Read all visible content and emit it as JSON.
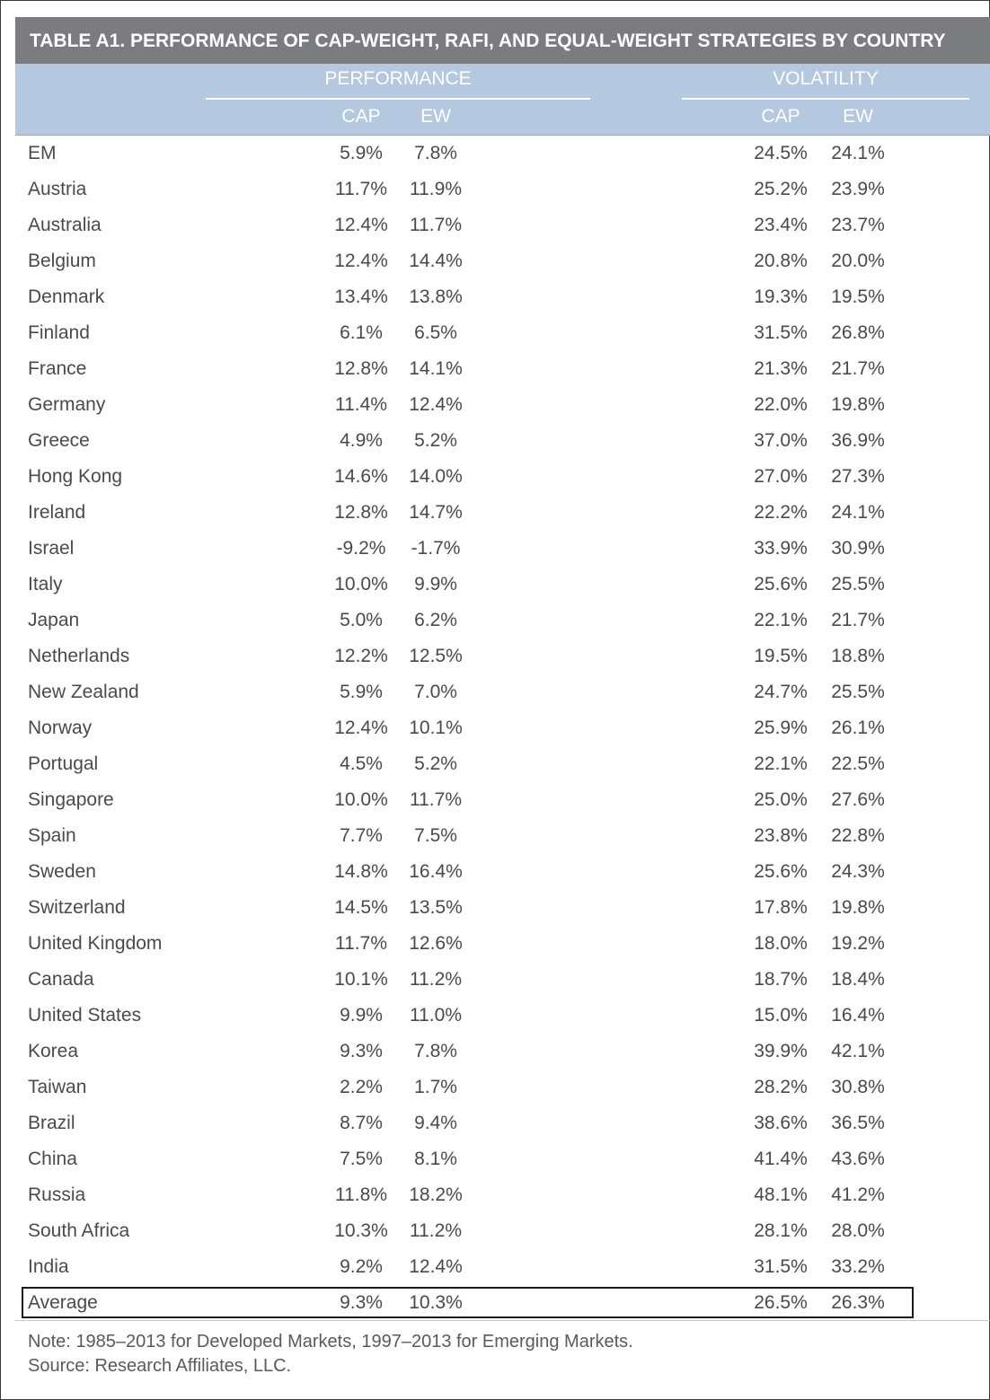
{
  "title": "TABLE A1. PERFORMANCE OF CAP-WEIGHT, RAFI, AND EQUAL-WEIGHT STRATEGIES BY COUNTRY",
  "headers": {
    "performance": "PERFORMANCE",
    "volatility": "VOLATILITY",
    "perf_cap": "CAP",
    "perf_ew": "EW",
    "vol_cap": "CAP",
    "vol_ew": "EW"
  },
  "rows": [
    {
      "country": "EM",
      "perf_cap": "5.9%",
      "perf_ew": "7.8%",
      "vol_cap": "24.5%",
      "vol_ew": "24.1%"
    },
    {
      "country": "Austria",
      "perf_cap": "11.7%",
      "perf_ew": "11.9%",
      "vol_cap": "25.2%",
      "vol_ew": "23.9%"
    },
    {
      "country": "Australia",
      "perf_cap": "12.4%",
      "perf_ew": "11.7%",
      "vol_cap": "23.4%",
      "vol_ew": "23.7%"
    },
    {
      "country": "Belgium",
      "perf_cap": "12.4%",
      "perf_ew": "14.4%",
      "vol_cap": "20.8%",
      "vol_ew": "20.0%"
    },
    {
      "country": "Denmark",
      "perf_cap": "13.4%",
      "perf_ew": "13.8%",
      "vol_cap": "19.3%",
      "vol_ew": "19.5%"
    },
    {
      "country": "Finland",
      "perf_cap": "6.1%",
      "perf_ew": "6.5%",
      "vol_cap": "31.5%",
      "vol_ew": "26.8%"
    },
    {
      "country": "France",
      "perf_cap": "12.8%",
      "perf_ew": "14.1%",
      "vol_cap": "21.3%",
      "vol_ew": "21.7%"
    },
    {
      "country": "Germany",
      "perf_cap": "11.4%",
      "perf_ew": "12.4%",
      "vol_cap": "22.0%",
      "vol_ew": "19.8%"
    },
    {
      "country": "Greece",
      "perf_cap": "4.9%",
      "perf_ew": "5.2%",
      "vol_cap": "37.0%",
      "vol_ew": "36.9%"
    },
    {
      "country": "Hong Kong",
      "perf_cap": "14.6%",
      "perf_ew": "14.0%",
      "vol_cap": "27.0%",
      "vol_ew": "27.3%"
    },
    {
      "country": "Ireland",
      "perf_cap": "12.8%",
      "perf_ew": "14.7%",
      "vol_cap": "22.2%",
      "vol_ew": "24.1%"
    },
    {
      "country": "Israel",
      "perf_cap": "-9.2%",
      "perf_ew": "-1.7%",
      "vol_cap": "33.9%",
      "vol_ew": "30.9%"
    },
    {
      "country": "Italy",
      "perf_cap": "10.0%",
      "perf_ew": "9.9%",
      "vol_cap": "25.6%",
      "vol_ew": "25.5%"
    },
    {
      "country": "Japan",
      "perf_cap": "5.0%",
      "perf_ew": "6.2%",
      "vol_cap": "22.1%",
      "vol_ew": "21.7%"
    },
    {
      "country": "Netherlands",
      "perf_cap": "12.2%",
      "perf_ew": "12.5%",
      "vol_cap": "19.5%",
      "vol_ew": "18.8%"
    },
    {
      "country": "New Zealand",
      "perf_cap": "5.9%",
      "perf_ew": "7.0%",
      "vol_cap": "24.7%",
      "vol_ew": "25.5%"
    },
    {
      "country": "Norway",
      "perf_cap": "12.4%",
      "perf_ew": "10.1%",
      "vol_cap": "25.9%",
      "vol_ew": "26.1%"
    },
    {
      "country": "Portugal",
      "perf_cap": "4.5%",
      "perf_ew": "5.2%",
      "vol_cap": "22.1%",
      "vol_ew": "22.5%"
    },
    {
      "country": "Singapore",
      "perf_cap": "10.0%",
      "perf_ew": "11.7%",
      "vol_cap": "25.0%",
      "vol_ew": "27.6%"
    },
    {
      "country": "Spain",
      "perf_cap": "7.7%",
      "perf_ew": "7.5%",
      "vol_cap": "23.8%",
      "vol_ew": "22.8%"
    },
    {
      "country": "Sweden",
      "perf_cap": "14.8%",
      "perf_ew": "16.4%",
      "vol_cap": "25.6%",
      "vol_ew": "24.3%"
    },
    {
      "country": "Switzerland",
      "perf_cap": "14.5%",
      "perf_ew": "13.5%",
      "vol_cap": "17.8%",
      "vol_ew": "19.8%"
    },
    {
      "country": "United Kingdom",
      "perf_cap": "11.7%",
      "perf_ew": "12.6%",
      "vol_cap": "18.0%",
      "vol_ew": "19.2%"
    },
    {
      "country": "Canada",
      "perf_cap": "10.1%",
      "perf_ew": "11.2%",
      "vol_cap": "18.7%",
      "vol_ew": "18.4%"
    },
    {
      "country": "United States",
      "perf_cap": "9.9%",
      "perf_ew": "11.0%",
      "vol_cap": "15.0%",
      "vol_ew": "16.4%"
    },
    {
      "country": "Korea",
      "perf_cap": "9.3%",
      "perf_ew": "7.8%",
      "vol_cap": "39.9%",
      "vol_ew": "42.1%"
    },
    {
      "country": "Taiwan",
      "perf_cap": "2.2%",
      "perf_ew": "1.7%",
      "vol_cap": "28.2%",
      "vol_ew": "30.8%"
    },
    {
      "country": "Brazil",
      "perf_cap": "8.7%",
      "perf_ew": "9.4%",
      "vol_cap": "38.6%",
      "vol_ew": "36.5%"
    },
    {
      "country": "China",
      "perf_cap": "7.5%",
      "perf_ew": "8.1%",
      "vol_cap": "41.4%",
      "vol_ew": "43.6%"
    },
    {
      "country": "Russia",
      "perf_cap": "11.8%",
      "perf_ew": "18.2%",
      "vol_cap": "48.1%",
      "vol_ew": "41.2%"
    },
    {
      "country": "South Africa",
      "perf_cap": "10.3%",
      "perf_ew": "11.2%",
      "vol_cap": "28.1%",
      "vol_ew": "28.0%"
    },
    {
      "country": "India",
      "perf_cap": "9.2%",
      "perf_ew": "12.4%",
      "vol_cap": "31.5%",
      "vol_ew": "33.2%"
    },
    {
      "country": "Average",
      "perf_cap": "9.3%",
      "perf_ew": "10.3%",
      "vol_cap": "26.5%",
      "vol_ew": "26.3%"
    }
  ],
  "footer": {
    "note": "Note: 1985–2013 for Developed Markets, 1997–2013 for Emerging Markets.",
    "source": "Source: Research Affiliates, LLC."
  }
}
